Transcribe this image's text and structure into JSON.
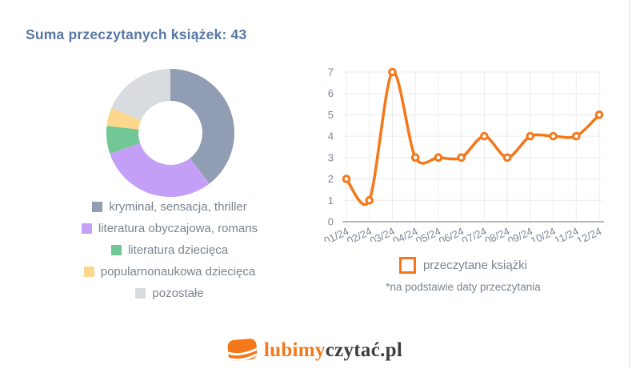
{
  "page": {
    "title": "Suma przeczytanych książek: 43",
    "title_color": "#5778a4",
    "total_books": 43
  },
  "chart_data": [
    {
      "type": "pie",
      "subtype": "donut",
      "labels": [
        "kryminał, sensacja, thriller",
        "literatura obyczajowa, romans",
        "literatura dziecięca",
        "popularnonaukowa dziecięca",
        "pozostałe"
      ],
      "values": [
        17,
        13,
        3,
        2,
        8
      ],
      "colors": [
        "#909db2",
        "#c49ff7",
        "#71c795",
        "#fdd88c",
        "#d8dbe0"
      ],
      "total": 43,
      "start_angle_deg": 0,
      "direction": "clockwise",
      "legend_position": "bottom"
    },
    {
      "type": "line",
      "x": [
        "01/24",
        "02/24",
        "03/24",
        "04/24",
        "05/24",
        "06/24",
        "07/24",
        "08/24",
        "09/24",
        "10/24",
        "11/24",
        "12/24"
      ],
      "series": [
        {
          "name": "przeczytane książki",
          "values": [
            2,
            1,
            7,
            3,
            3,
            3,
            4,
            3,
            4,
            4,
            4,
            5
          ]
        }
      ],
      "color": "#f5771a",
      "marker": "hollow-circle",
      "ylim": [
        0,
        7
      ],
      "yticks": [
        0,
        1,
        2,
        3,
        4,
        5,
        6,
        7
      ],
      "grid": true,
      "legend_position": "bottom",
      "footnote": "*na podstawie daty przeczytania"
    }
  ],
  "logo": {
    "prefix": "lubimy",
    "suffix": "czytać.pl",
    "icon": "books-stack-icon",
    "orange": "#f5771a",
    "dark": "#3d3d3d"
  }
}
